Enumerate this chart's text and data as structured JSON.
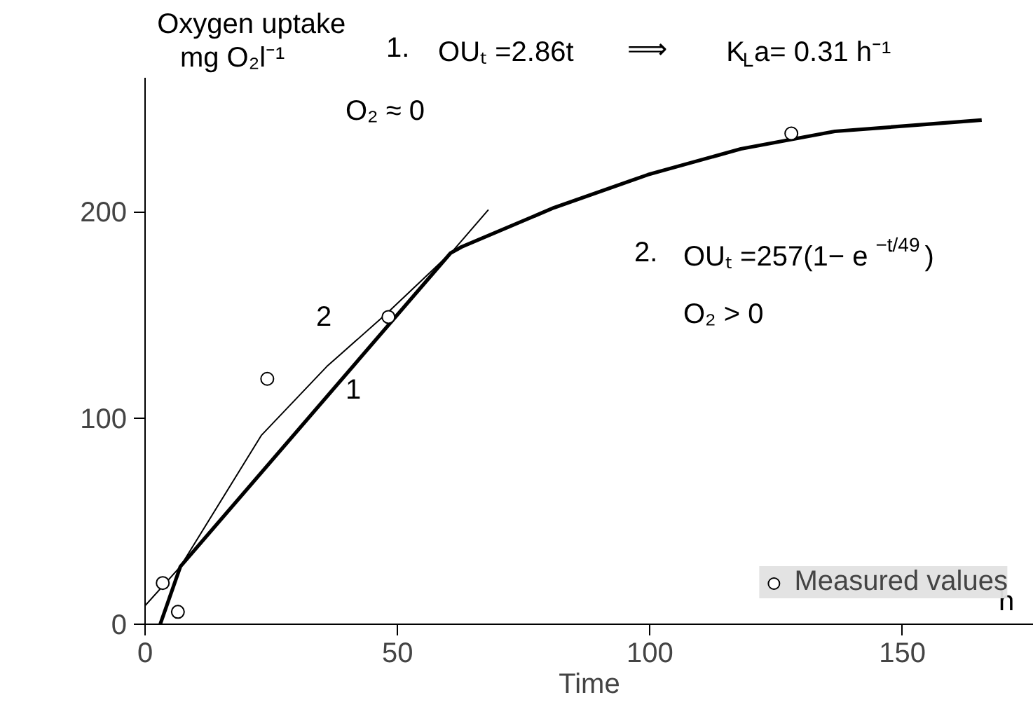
{
  "chart_data": {
    "type": "line",
    "xlabel": "Time",
    "ylabel": "Oxygen uptake\nmg O₂l⁻¹",
    "xlim": [
      0,
      176
    ],
    "ylim": [
      0,
      265
    ],
    "xticks": [
      0,
      50,
      100,
      150
    ],
    "yticks": [
      0,
      100,
      200
    ],
    "grid": false,
    "legend": "bottom right",
    "series": [
      {
        "color": "#000000",
        "x": [
          3,
          7,
          60.5,
          62.7,
          81,
          99.6,
          118,
          136.6,
          165.7
        ],
        "values": [
          0,
          28,
          180,
          183,
          202,
          218,
          230.5,
          239,
          244.5
        ],
        "line_style": "solid",
        "marker": "none"
      },
      {
        "color": "#000000",
        "x": [
          7,
          68
        ],
        "values": [
          28,
          201
        ],
        "line_style": "solid",
        "marker": "none"
      },
      {
        "color": "#000000",
        "x": [
          0,
          7,
          23,
          36,
          48,
          60.5
        ],
        "values": [
          9,
          28,
          91.5,
          125,
          151,
          180
        ],
        "line_style": "solid",
        "marker": "none"
      },
      {
        "type": "scatter",
        "name": "Measured values",
        "color": "#000000",
        "x": [
          3.5,
          6.5,
          24.2,
          48.2,
          128
        ],
        "values": [
          20,
          6,
          119,
          149,
          238
        ],
        "marker": "circle"
      }
    ],
    "annotations": [
      "1.",
      "OUₜ =2.86t",
      "⟹",
      "K$_{L}$a= 0.31 h⁻¹",
      "O₂ ≈ 0",
      "2.",
      "OUₜ =257(1− e$^{−t/49}$)",
      "O₂ > 0",
      "h",
      "1",
      "2"
    ]
  }
}
